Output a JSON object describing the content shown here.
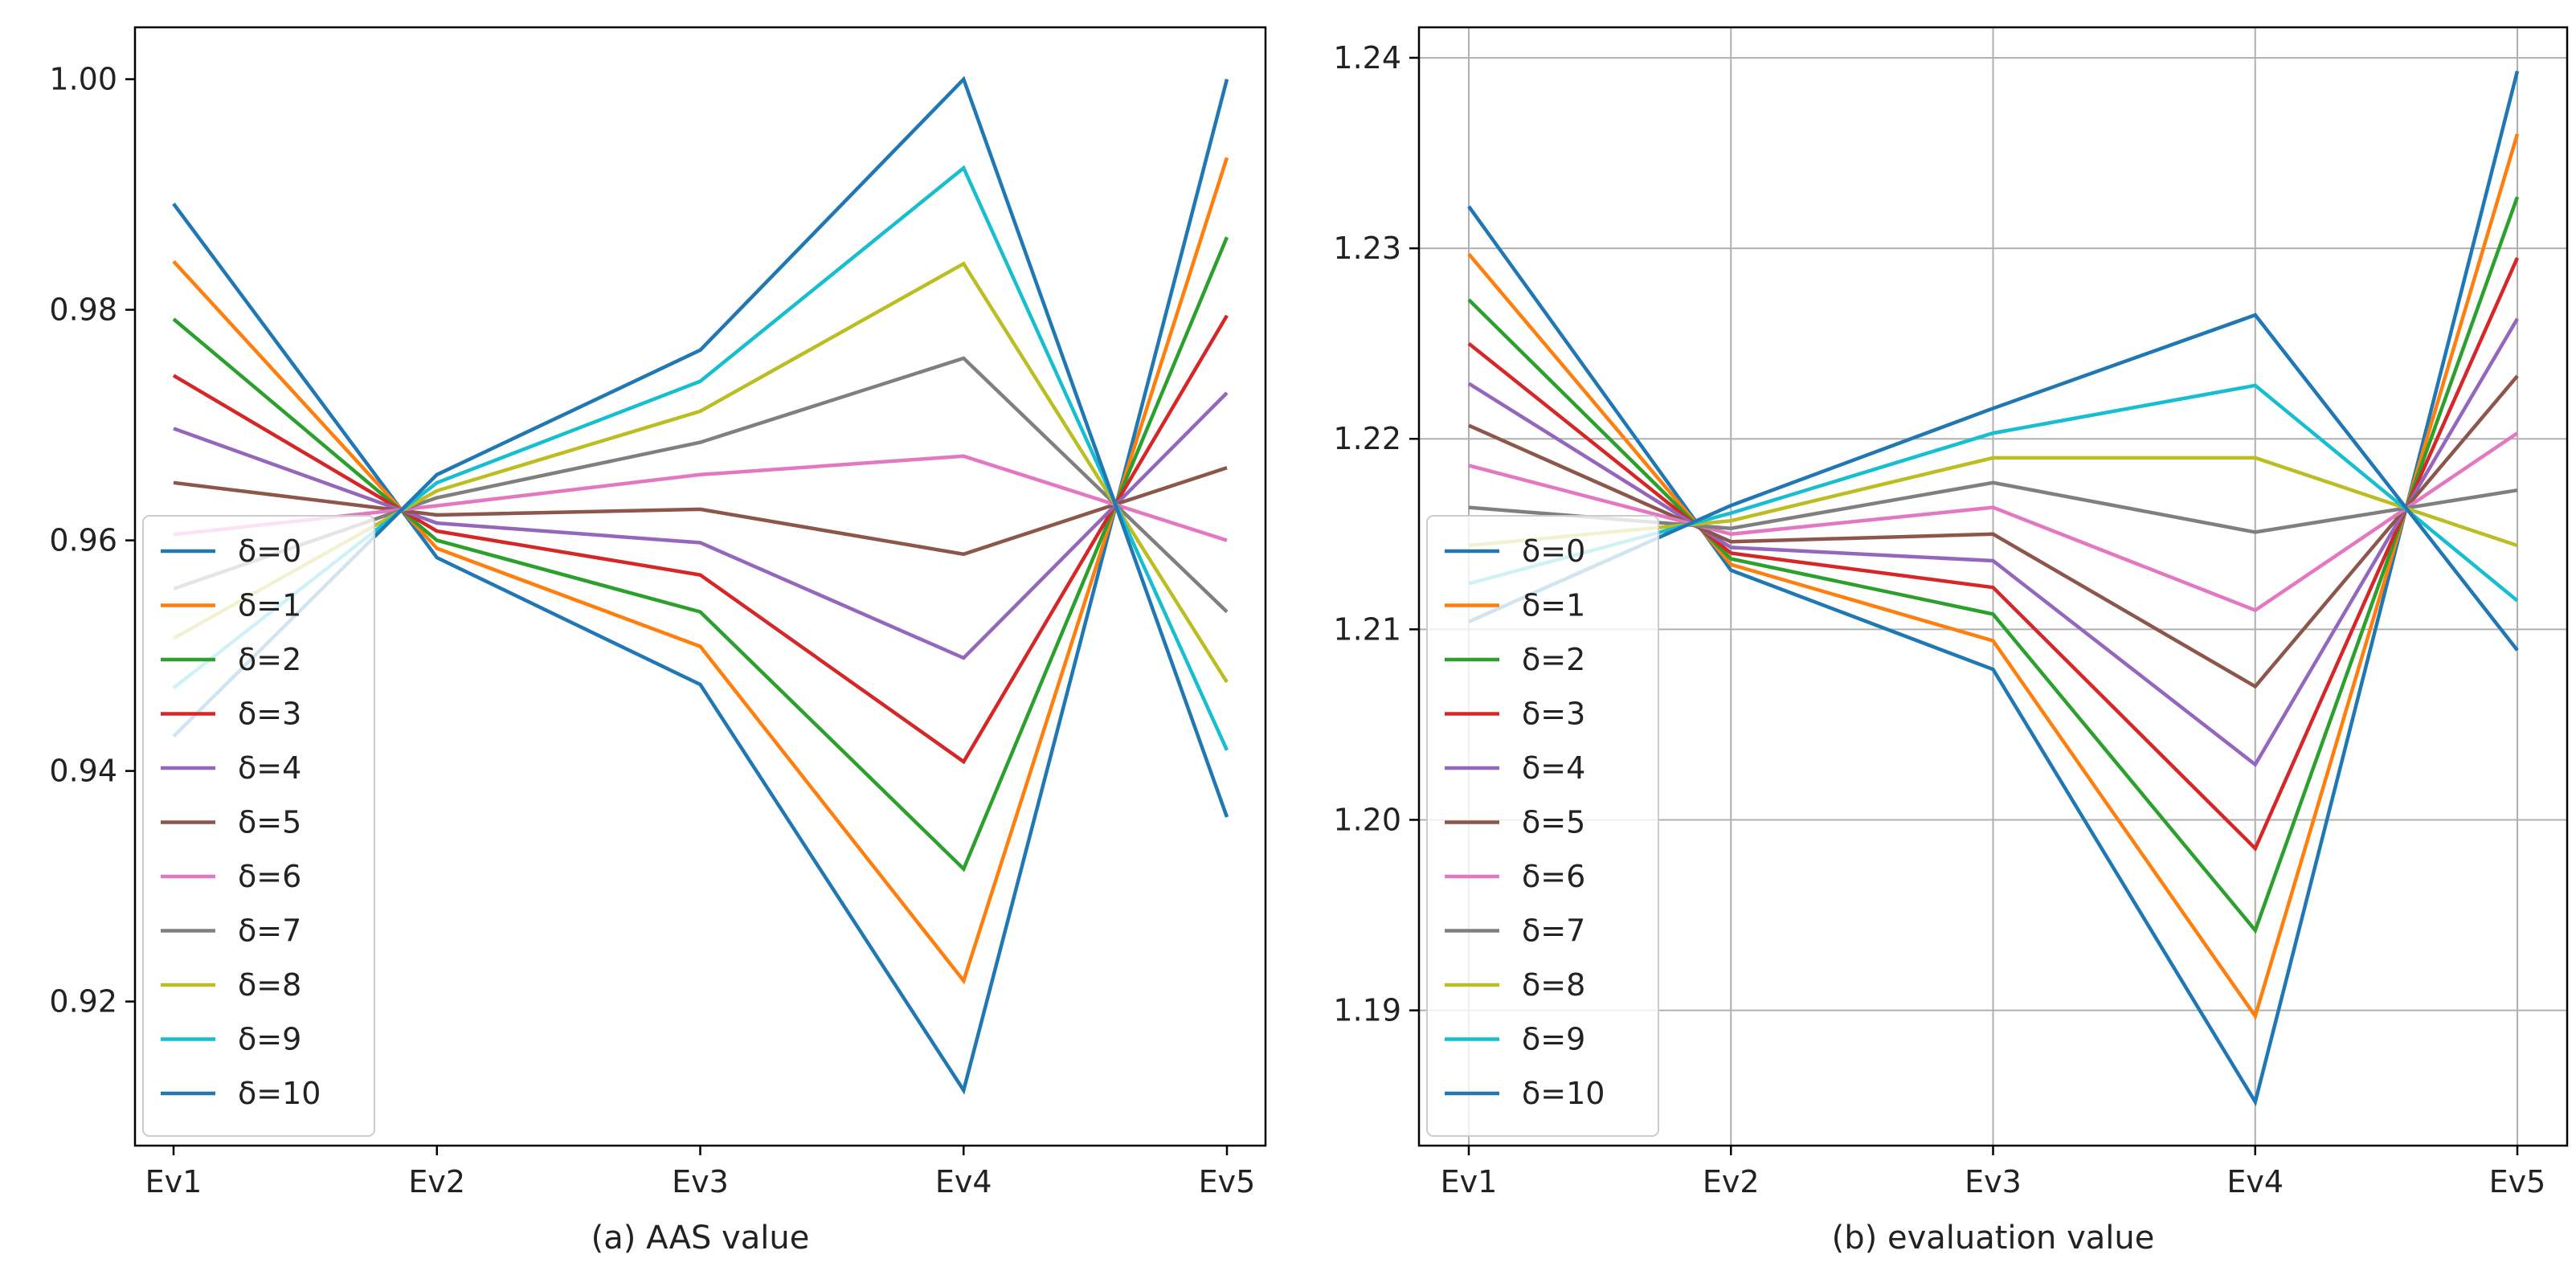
{
  "chart_data": [
    {
      "type": "line",
      "title": "",
      "xlabel": "(a) AAS value",
      "ylabel": "",
      "categories": [
        "Ev1",
        "Ev2",
        "Ev3",
        "Ev4",
        "Ev5"
      ],
      "ylim": [
        0.9075,
        1.0045
      ],
      "yticks": [
        "0.92",
        "0.94",
        "0.96",
        "0.98",
        "1.00"
      ],
      "grid": false,
      "legend_position": "lower-left",
      "series": [
        {
          "name": "δ=0",
          "color": "#1f77b4",
          "values": [
            0.9892,
            0.9585,
            0.9475,
            0.9123,
            1.0
          ]
        },
        {
          "name": "δ=1",
          "color": "#ff7f0e",
          "values": [
            0.9842,
            0.9593,
            0.9508,
            0.9218,
            0.9932
          ]
        },
        {
          "name": "δ=2",
          "color": "#2ca02c",
          "values": [
            0.9792,
            0.96,
            0.9538,
            0.9315,
            0.9863
          ]
        },
        {
          "name": "δ=3",
          "color": "#d62728",
          "values": [
            0.9743,
            0.9608,
            0.957,
            0.9408,
            0.9795
          ]
        },
        {
          "name": "δ=4",
          "color": "#9467bd",
          "values": [
            0.9697,
            0.9615,
            0.9598,
            0.9498,
            0.9728
          ]
        },
        {
          "name": "δ=5",
          "color": "#8c564b",
          "values": [
            0.965,
            0.9622,
            0.9627,
            0.9588,
            0.9663
          ]
        },
        {
          "name": "δ=6",
          "color": "#e377c2",
          "values": [
            0.9605,
            0.963,
            0.9657,
            0.9673,
            0.96
          ]
        },
        {
          "name": "δ=7",
          "color": "#7f7f7f",
          "values": [
            0.9558,
            0.9637,
            0.9685,
            0.9758,
            0.9538
          ]
        },
        {
          "name": "δ=8",
          "color": "#bcbd22",
          "values": [
            0.9515,
            0.9643,
            0.9712,
            0.984,
            0.9477
          ]
        },
        {
          "name": "δ=9",
          "color": "#17becf",
          "values": [
            0.9472,
            0.965,
            0.9738,
            0.9923,
            0.9418
          ]
        },
        {
          "name": "δ=10",
          "color": "#1f77b4",
          "values": [
            0.943,
            0.9657,
            0.9765,
            1.0,
            0.936
          ]
        }
      ]
    },
    {
      "type": "line",
      "title": "",
      "xlabel": "(b) evaluation value",
      "ylabel": "",
      "categories": [
        "Ev1",
        "Ev2",
        "Ev3",
        "Ev4",
        "Ev5"
      ],
      "ylim": [
        1.1829,
        1.2416
      ],
      "yticks": [
        "1.19",
        "1.20",
        "1.21",
        "1.22",
        "1.23",
        "1.24"
      ],
      "grid": true,
      "legend_position": "lower-left",
      "series": [
        {
          "name": "δ=0",
          "color": "#1f77b4",
          "values": [
            1.2322,
            1.2131,
            1.2079,
            1.1852,
            1.2393
          ]
        },
        {
          "name": "δ=1",
          "color": "#ff7f0e",
          "values": [
            1.2297,
            1.2134,
            1.2094,
            1.1897,
            1.236
          ]
        },
        {
          "name": "δ=2",
          "color": "#2ca02c",
          "values": [
            1.2273,
            1.2137,
            1.2108,
            1.1942,
            1.2327
          ]
        },
        {
          "name": "δ=3",
          "color": "#d62728",
          "values": [
            1.225,
            1.214,
            1.2122,
            1.1985,
            1.2295
          ]
        },
        {
          "name": "δ=4",
          "color": "#9467bd",
          "values": [
            1.2229,
            1.2143,
            1.2136,
            1.2029,
            1.2263
          ]
        },
        {
          "name": "δ=5",
          "color": "#8c564b",
          "values": [
            1.2207,
            1.2146,
            1.215,
            1.207,
            1.2233
          ]
        },
        {
          "name": "δ=6",
          "color": "#e377c2",
          "values": [
            1.2186,
            1.215,
            1.2164,
            1.211,
            1.2203
          ]
        },
        {
          "name": "δ=7",
          "color": "#7f7f7f",
          "values": [
            1.2164,
            1.2153,
            1.2177,
            1.2151,
            1.2173
          ]
        },
        {
          "name": "δ=8",
          "color": "#bcbd22",
          "values": [
            1.2144,
            1.2157,
            1.219,
            1.219,
            1.2144
          ]
        },
        {
          "name": "δ=9",
          "color": "#17becf",
          "values": [
            1.2124,
            1.2161,
            1.2203,
            1.2228,
            1.2115
          ]
        },
        {
          "name": "δ=10",
          "color": "#1f77b4",
          "values": [
            1.2104,
            1.2165,
            1.2216,
            1.2265,
            1.2089
          ]
        }
      ]
    }
  ]
}
